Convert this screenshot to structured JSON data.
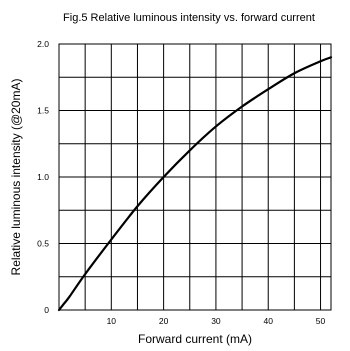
{
  "chart_data": {
    "type": "line",
    "title": "Fig.5 Relative luminous intensity vs. forward current",
    "xlabel": "Forward current (mA)",
    "ylabel": "Relative luminous intensity (@20mA)",
    "xlim": [
      0,
      52
    ],
    "ylim": [
      0,
      2.0
    ],
    "x_ticks": [
      10,
      20,
      30,
      40,
      50
    ],
    "x_tick_labels": [
      "10",
      "20",
      "30",
      "40",
      "50"
    ],
    "y_ticks": [
      0,
      0.5,
      1.0,
      1.5,
      2.0
    ],
    "y_tick_labels": [
      "0",
      "0.5",
      "1.0",
      "1.5",
      "2.0"
    ],
    "grid": true,
    "series": [
      {
        "x": [
          0,
          1,
          2,
          5,
          10,
          15,
          20,
          25,
          30,
          35,
          40,
          45,
          50,
          52
        ],
        "y": [
          0,
          0.05,
          0.1,
          0.27,
          0.53,
          0.78,
          1.0,
          1.2,
          1.38,
          1.53,
          1.66,
          1.78,
          1.87,
          1.9
        ]
      }
    ],
    "line_color": "#000000"
  }
}
